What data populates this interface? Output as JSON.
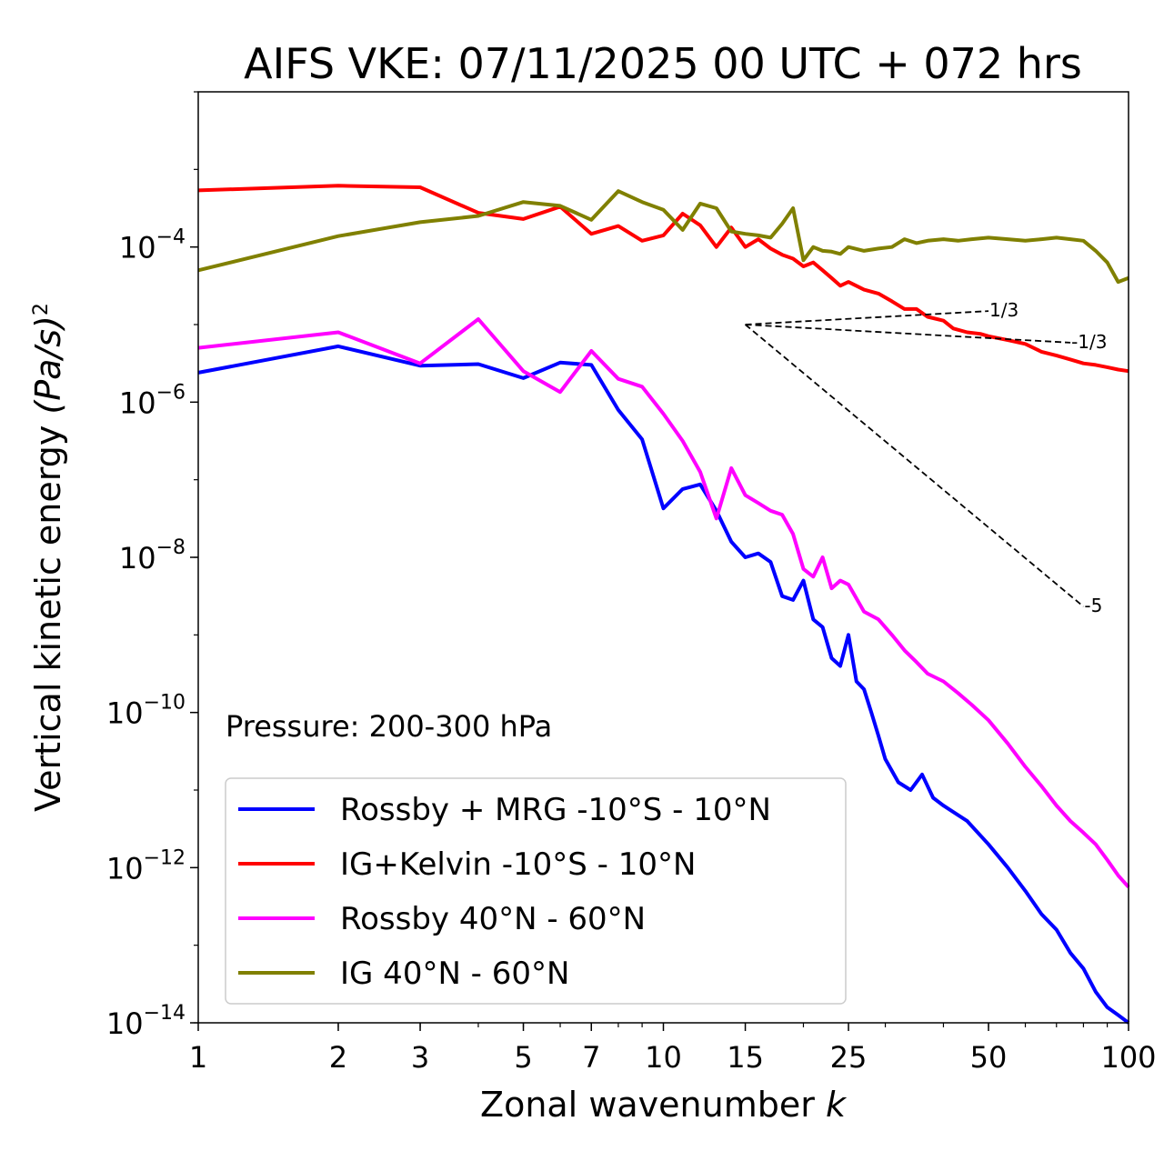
{
  "chart_data": {
    "type": "line",
    "title": "AIFS VKE: 07/11/2025 00 UTC + 072 hrs",
    "xlabel": "Zonal wavenumber",
    "xlabel_var": "k",
    "ylabel_main": "Vertical kinetic energy",
    "ylabel_unit": "(Pa/s)",
    "ylabel_unit_exp": "2",
    "xscale": "log",
    "yscale": "log",
    "xlim": [
      1,
      100
    ],
    "ylim": [
      1e-14,
      0.01
    ],
    "xticks": [
      {
        "value": 1,
        "label": "1"
      },
      {
        "value": 2,
        "label": "2"
      },
      {
        "value": 3,
        "label": "3"
      },
      {
        "value": 5,
        "label": "5"
      },
      {
        "value": 7,
        "label": "7"
      },
      {
        "value": 10,
        "label": "10"
      },
      {
        "value": 15,
        "label": "15"
      },
      {
        "value": 25,
        "label": "25"
      },
      {
        "value": 50,
        "label": "50"
      },
      {
        "value": 100,
        "label": "100"
      }
    ],
    "yticks": [
      {
        "value": 0.0001,
        "base": "10",
        "exp": "−4"
      },
      {
        "value": 1e-06,
        "base": "10",
        "exp": "−6"
      },
      {
        "value": 1e-08,
        "base": "10",
        "exp": "−8"
      },
      {
        "value": 1e-10,
        "base": "10",
        "exp": "−10"
      },
      {
        "value": 1e-12,
        "base": "10",
        "exp": "−12"
      },
      {
        "value": 1e-14,
        "base": "10",
        "exp": "−14"
      }
    ],
    "annotation": "Pressure: 200-300 hPa",
    "legend_position": "lower-left",
    "series": [
      {
        "name": "Rossby + MRG -10°S - 10°N",
        "color": "#0000ff",
        "points": [
          [
            1,
            -5.62
          ],
          [
            2,
            -5.28
          ],
          [
            3,
            -5.53
          ],
          [
            4,
            -5.51
          ],
          [
            5,
            -5.69
          ],
          [
            6,
            -5.49
          ],
          [
            7,
            -5.52
          ],
          [
            8,
            -6.1
          ],
          [
            9,
            -6.48
          ],
          [
            10,
            -7.37
          ],
          [
            11,
            -7.12
          ],
          [
            12,
            -7.06
          ],
          [
            13,
            -7.4
          ],
          [
            14,
            -7.8
          ],
          [
            15,
            -8.0
          ],
          [
            16,
            -7.95
          ],
          [
            17,
            -8.06
          ],
          [
            18,
            -8.5
          ],
          [
            19,
            -8.55
          ],
          [
            20,
            -8.3
          ],
          [
            21,
            -8.8
          ],
          [
            22,
            -8.9
          ],
          [
            23,
            -9.3
          ],
          [
            24,
            -9.4
          ],
          [
            25,
            -9.0
          ],
          [
            26,
            -9.6
          ],
          [
            27,
            -9.7
          ],
          [
            28,
            -10.0
          ],
          [
            29,
            -10.3
          ],
          [
            30,
            -10.6
          ],
          [
            32,
            -10.9
          ],
          [
            34,
            -11.0
          ],
          [
            36,
            -10.8
          ],
          [
            38,
            -11.1
          ],
          [
            40,
            -11.2
          ],
          [
            45,
            -11.4
          ],
          [
            50,
            -11.7
          ],
          [
            55,
            -12.0
          ],
          [
            60,
            -12.3
          ],
          [
            65,
            -12.6
          ],
          [
            70,
            -12.8
          ],
          [
            75,
            -13.1
          ],
          [
            80,
            -13.3
          ],
          [
            85,
            -13.6
          ],
          [
            90,
            -13.8
          ],
          [
            95,
            -13.9
          ],
          [
            100,
            -14.0
          ]
        ]
      },
      {
        "name": "IG+Kelvin -10°S - 10°N",
        "color": "#ff0000",
        "points": [
          [
            1,
            -3.27
          ],
          [
            2,
            -3.21
          ],
          [
            3,
            -3.23
          ],
          [
            4,
            -3.56
          ],
          [
            5,
            -3.64
          ],
          [
            6,
            -3.48
          ],
          [
            7,
            -3.83
          ],
          [
            8,
            -3.73
          ],
          [
            9,
            -3.92
          ],
          [
            10,
            -3.85
          ],
          [
            11,
            -3.57
          ],
          [
            12,
            -3.72
          ],
          [
            13,
            -4.0
          ],
          [
            14,
            -3.75
          ],
          [
            15,
            -4.0
          ],
          [
            16,
            -3.9
          ],
          [
            17,
            -4.02
          ],
          [
            18,
            -4.1
          ],
          [
            19,
            -4.15
          ],
          [
            20,
            -4.25
          ],
          [
            21,
            -4.2
          ],
          [
            22,
            -4.3
          ],
          [
            23,
            -4.4
          ],
          [
            24,
            -4.5
          ],
          [
            25,
            -4.45
          ],
          [
            27,
            -4.55
          ],
          [
            29,
            -4.6
          ],
          [
            31,
            -4.7
          ],
          [
            33,
            -4.8
          ],
          [
            35,
            -4.8
          ],
          [
            37,
            -4.9
          ],
          [
            40,
            -4.95
          ],
          [
            42,
            -5.05
          ],
          [
            45,
            -5.1
          ],
          [
            48,
            -5.12
          ],
          [
            50,
            -5.15
          ],
          [
            55,
            -5.2
          ],
          [
            60,
            -5.25
          ],
          [
            65,
            -5.35
          ],
          [
            70,
            -5.4
          ],
          [
            75,
            -5.45
          ],
          [
            80,
            -5.5
          ],
          [
            85,
            -5.52
          ],
          [
            90,
            -5.55
          ],
          [
            95,
            -5.58
          ],
          [
            100,
            -5.6
          ]
        ]
      },
      {
        "name": "Rossby 40°N - 60°N",
        "color": "#ff00ff",
        "points": [
          [
            1,
            -5.3
          ],
          [
            2,
            -5.1
          ],
          [
            3,
            -5.5
          ],
          [
            4,
            -4.93
          ],
          [
            5,
            -5.6
          ],
          [
            6,
            -5.87
          ],
          [
            7,
            -5.34
          ],
          [
            8,
            -5.7
          ],
          [
            9,
            -5.8
          ],
          [
            10,
            -6.15
          ],
          [
            11,
            -6.5
          ],
          [
            12,
            -6.9
          ],
          [
            13,
            -7.5
          ],
          [
            14,
            -6.85
          ],
          [
            15,
            -7.2
          ],
          [
            16,
            -7.3
          ],
          [
            17,
            -7.4
          ],
          [
            18,
            -7.45
          ],
          [
            19,
            -7.7
          ],
          [
            20,
            -8.15
          ],
          [
            21,
            -8.25
          ],
          [
            22,
            -8.0
          ],
          [
            23,
            -8.4
          ],
          [
            24,
            -8.3
          ],
          [
            25,
            -8.35
          ],
          [
            27,
            -8.7
          ],
          [
            29,
            -8.8
          ],
          [
            31,
            -9.0
          ],
          [
            33,
            -9.2
          ],
          [
            35,
            -9.35
          ],
          [
            37,
            -9.5
          ],
          [
            40,
            -9.6
          ],
          [
            43,
            -9.75
          ],
          [
            46,
            -9.9
          ],
          [
            50,
            -10.1
          ],
          [
            55,
            -10.4
          ],
          [
            60,
            -10.7
          ],
          [
            65,
            -10.95
          ],
          [
            70,
            -11.2
          ],
          [
            75,
            -11.4
          ],
          [
            80,
            -11.55
          ],
          [
            85,
            -11.7
          ],
          [
            90,
            -11.9
          ],
          [
            95,
            -12.1
          ],
          [
            100,
            -12.25
          ]
        ]
      },
      {
        "name": "IG 40°N - 60°N",
        "color": "#808000",
        "points": [
          [
            1,
            -4.3
          ],
          [
            2,
            -3.86
          ],
          [
            3,
            -3.68
          ],
          [
            4,
            -3.6
          ],
          [
            5,
            -3.42
          ],
          [
            6,
            -3.47
          ],
          [
            7,
            -3.65
          ],
          [
            8,
            -3.28
          ],
          [
            9,
            -3.42
          ],
          [
            10,
            -3.52
          ],
          [
            11,
            -3.78
          ],
          [
            12,
            -3.44
          ],
          [
            13,
            -3.5
          ],
          [
            14,
            -3.8
          ],
          [
            15,
            -3.83
          ],
          [
            16,
            -3.85
          ],
          [
            17,
            -3.88
          ],
          [
            18,
            -3.7
          ],
          [
            19,
            -3.5
          ],
          [
            20,
            -4.17
          ],
          [
            21,
            -4.0
          ],
          [
            22,
            -4.05
          ],
          [
            23,
            -4.06
          ],
          [
            24,
            -4.09
          ],
          [
            25,
            -4.0
          ],
          [
            27,
            -4.05
          ],
          [
            29,
            -4.02
          ],
          [
            31,
            -4.0
          ],
          [
            33,
            -3.9
          ],
          [
            35,
            -3.95
          ],
          [
            37,
            -3.92
          ],
          [
            40,
            -3.9
          ],
          [
            43,
            -3.92
          ],
          [
            46,
            -3.9
          ],
          [
            50,
            -3.88
          ],
          [
            55,
            -3.9
          ],
          [
            60,
            -3.92
          ],
          [
            65,
            -3.9
          ],
          [
            70,
            -3.88
          ],
          [
            75,
            -3.9
          ],
          [
            80,
            -3.92
          ],
          [
            85,
            -4.05
          ],
          [
            90,
            -4.2
          ],
          [
            95,
            -4.45
          ],
          [
            100,
            -4.4
          ]
        ]
      }
    ],
    "reference_slopes": [
      {
        "label": "1/3",
        "slope": 0.3333,
        "x0": 15,
        "x1": 50,
        "y0_log10": -5.0
      },
      {
        "label": "-1/3",
        "slope": -0.3333,
        "x0": 15,
        "x1": 75,
        "y0_log10": -5.0
      },
      {
        "label": "-5",
        "slope": -5,
        "x0": 15,
        "x1": 80,
        "y0_log10": -5.0
      }
    ]
  }
}
